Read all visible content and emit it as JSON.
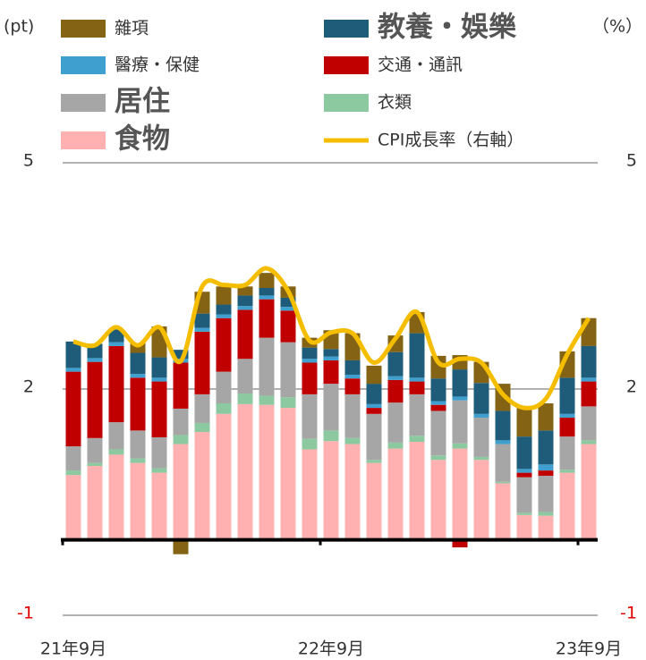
{
  "chart_data": {
    "type": "bar",
    "stacked": true,
    "y_unit": "(pt)",
    "y2_unit": "（%）",
    "categories": [
      "21年9月",
      null,
      null,
      null,
      null,
      null,
      null,
      null,
      null,
      null,
      null,
      null,
      "22年9月",
      null,
      null,
      null,
      null,
      null,
      null,
      null,
      null,
      null,
      null,
      null,
      "23年9月"
    ],
    "ylim": [
      -1,
      5
    ],
    "yticks": [
      -1,
      2,
      5
    ],
    "y2lim": [
      -1,
      5
    ],
    "y2ticks": [
      -1,
      2,
      5
    ],
    "grid": true,
    "series": [
      {
        "name": "食物",
        "color": "#ffb0b0",
        "values": [
          0.86,
          0.98,
          1.13,
          1.02,
          0.89,
          1.27,
          1.43,
          1.67,
          1.8,
          1.79,
          1.75,
          1.2,
          1.31,
          1.27,
          1.02,
          1.21,
          1.3,
          1.06,
          1.21,
          1.06,
          0.75,
          0.33,
          0.32,
          0.89,
          1.27
        ]
      },
      {
        "name": "衣類",
        "color": "#8cc8a0",
        "values": [
          0.06,
          0.04,
          0.07,
          0.06,
          0.06,
          0.12,
          0.12,
          0.14,
          0.14,
          0.12,
          0.14,
          0.14,
          0.14,
          0.08,
          0.04,
          0.08,
          0.08,
          0.06,
          0.07,
          0.04,
          0.02,
          0.03,
          0.05,
          0.04,
          0.05
        ]
      },
      {
        "name": "居住",
        "color": "#a6a6a6",
        "values": [
          0.32,
          0.33,
          0.36,
          0.37,
          0.41,
          0.35,
          0.38,
          0.42,
          0.46,
          0.77,
          0.73,
          0.59,
          0.62,
          0.58,
          0.61,
          0.53,
          0.55,
          0.59,
          0.57,
          0.52,
          0.5,
          0.47,
          0.48,
          0.44,
          0.45
        ]
      },
      {
        "name": "交通・通訊",
        "color": "#c00000",
        "values": [
          0.99,
          1.01,
          1.01,
          0.7,
          0.74,
          0.61,
          0.83,
          0.71,
          0.65,
          0.51,
          0.42,
          0.42,
          0.31,
          0.21,
          0.08,
          0.3,
          0.17,
          0.08,
          -0.1,
          0,
          0,
          0.06,
          0.07,
          0.25,
          0.33
        ]
      },
      {
        "name": "醫療・保健",
        "color": "#3fa0d0",
        "values": [
          0.05,
          0.05,
          0.05,
          0.05,
          0.05,
          0.05,
          0.05,
          0.05,
          0.05,
          0.05,
          0.05,
          0.05,
          0.05,
          0.05,
          0.05,
          0.05,
          0.05,
          0.05,
          0.05,
          0.05,
          0.05,
          0.05,
          0.08,
          0.05,
          0.05
        ]
      },
      {
        "name": "教養・娛樂",
        "color": "#1f5c7a",
        "values": [
          0.35,
          0.19,
          0.17,
          0.28,
          0.27,
          0.12,
          0.19,
          0.13,
          0.14,
          0.1,
          0.12,
          0.15,
          0.1,
          0.19,
          0.27,
          0.32,
          0.59,
          0.3,
          0.36,
          0.41,
          0.39,
          0.43,
          0.45,
          0.48,
          0.42
        ]
      },
      {
        "name": "雜項",
        "color": "#846414",
        "values": [
          0,
          0,
          0,
          0.13,
          0.41,
          -0.19,
          0.29,
          0.24,
          0.12,
          0.2,
          0.15,
          0.13,
          0.25,
          0.36,
          0.24,
          0.22,
          0.28,
          0.3,
          0.19,
          0.28,
          0.36,
          0.38,
          0.36,
          0.35,
          0.37
        ]
      },
      {
        "name": "CPI成長率（右軸）",
        "color": "#f5bd00",
        "type": "line",
        "axis": "y2",
        "values": [
          2.63,
          2.58,
          2.82,
          2.58,
          2.82,
          2.37,
          3.36,
          3.38,
          3.38,
          3.6,
          3.3,
          2.64,
          2.75,
          2.74,
          2.35,
          2.67,
          3.02,
          2.35,
          2.4,
          2.35,
          1.93,
          1.75,
          1.87,
          2.46,
          2.94
        ]
      }
    ]
  }
}
